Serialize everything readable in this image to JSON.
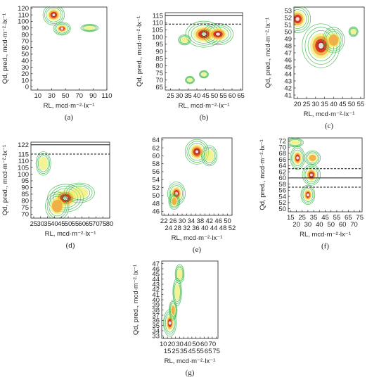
{
  "colors": {
    "outer": "#3bb84a",
    "mid": "#e9e93a",
    "warm": "#f2a03a",
    "hot": "#d42a1e",
    "core": "#7a1a14",
    "ref_line": "#111111"
  },
  "chart_data": [
    {
      "panel_label": "(a)",
      "type": "contour",
      "xlabel": "RL, mcd·m⁻²·lx⁻¹",
      "ylabel": "Qd, pred., mcd·m⁻²·lx⁻¹",
      "x_ticks": [
        "10",
        "30",
        "50",
        "70",
        "90",
        "110"
      ],
      "y_ticks": [
        "0",
        "10",
        "20",
        "30",
        "40",
        "50",
        "60",
        "70",
        "80",
        "90",
        "100",
        "110",
        "120"
      ],
      "xlim": [
        0,
        110
      ],
      "ylim": [
        -5,
        122
      ],
      "hline_solid": null,
      "hline_dashed": null,
      "clusters": [
        {
          "x": 33,
          "y": 110,
          "sx": 6,
          "sy": 6,
          "peak": 1.0
        },
        {
          "x": 45,
          "y": 89,
          "sx": 5,
          "sy": 4,
          "peak": 0.9
        },
        {
          "x": 85,
          "y": 90,
          "sx": 7,
          "sy": 3,
          "peak": 0.35
        }
      ]
    },
    {
      "panel_label": "(b)",
      "type": "contour",
      "xlabel": "RL, mcd·m⁻²·lx⁻¹",
      "ylabel": "Qd, pred., mcd·m⁻²·lx⁻¹",
      "x_ticks": [
        "25",
        "30",
        "35",
        "40",
        "45",
        "50",
        "55",
        "60",
        "65"
      ],
      "y_ticks": [
        "65",
        "70",
        "75",
        "80",
        "85",
        "90",
        "95",
        "100",
        "105",
        "110",
        "115"
      ],
      "xlim": [
        22,
        66
      ],
      "ylim": [
        63,
        117
      ],
      "hline_solid": 115,
      "hline_dashed": 109,
      "clusters": [
        {
          "x": 44,
          "y": 102,
          "sx": 4,
          "sy": 3.5,
          "peak": 1.0
        },
        {
          "x": 52,
          "y": 102,
          "sx": 3.5,
          "sy": 3,
          "peak": 0.9
        },
        {
          "x": 33,
          "y": 98,
          "sx": 2,
          "sy": 2,
          "peak": 0.3
        },
        {
          "x": 36,
          "y": 70,
          "sx": 1.5,
          "sy": 1.5,
          "peak": 0.25
        },
        {
          "x": 44,
          "y": 74,
          "sx": 1.5,
          "sy": 1.5,
          "peak": 0.25
        }
      ]
    },
    {
      "panel_label": "(c)",
      "type": "contour",
      "xlabel": "RL, mcd·m⁻²·lx⁻¹",
      "ylabel": "Qd, pred., mcd·m⁻²·lx⁻¹",
      "x_ticks": [
        "20",
        "25",
        "30",
        "35",
        "40",
        "45",
        "50",
        "55"
      ],
      "y_ticks": [
        "41",
        "42",
        "43",
        "44",
        "45",
        "46",
        "47",
        "48",
        "49",
        "50",
        "51",
        "52",
        "53"
      ],
      "xlim": [
        18,
        57
      ],
      "ylim": [
        40.5,
        53.5
      ],
      "hline_solid": null,
      "hline_dashed": null,
      "clusters": [
        {
          "x": 20,
          "y": 51.8,
          "sx": 3,
          "sy": 0.8,
          "peak": 0.85
        },
        {
          "x": 33,
          "y": 48,
          "sx": 4,
          "sy": 1.2,
          "peak": 1.0
        },
        {
          "x": 40,
          "y": 48.8,
          "sx": 3,
          "sy": 0.9,
          "peak": 0.5
        },
        {
          "x": 51,
          "y": 50,
          "sx": 1.5,
          "sy": 0.4,
          "peak": 0.25
        }
      ]
    },
    {
      "panel_label": "(d)",
      "type": "contour",
      "xlabel": "RL, mcd·m⁻²·lx⁻¹",
      "ylabel": "Qd, pred., mcd·m⁻²·lx⁻¹",
      "x_ticks": [
        "25",
        "30",
        "35",
        "40",
        "45",
        "50",
        "55",
        "60",
        "65",
        "70",
        "75",
        "80"
      ],
      "y_ticks": [
        "70",
        "75",
        "80",
        "85",
        "90",
        "95",
        "100",
        "105",
        "110",
        "115",
        "122"
      ],
      "xlim": [
        23,
        80
      ],
      "ylim": [
        67,
        124
      ],
      "hline_solid": 122,
      "hline_dashed": 115,
      "clusters": [
        {
          "x": 48,
          "y": 82,
          "sx": 5,
          "sy": 4,
          "peak": 1.0
        },
        {
          "x": 42,
          "y": 76,
          "sx": 4,
          "sy": 5,
          "peak": 0.6
        },
        {
          "x": 58,
          "y": 86,
          "sx": 6,
          "sy": 4,
          "peak": 0.35
        },
        {
          "x": 32,
          "y": 108,
          "sx": 3,
          "sy": 5,
          "peak": 0.3
        }
      ]
    },
    {
      "panel_label": "(e)",
      "type": "contour",
      "xlabel": "RL, mcd·m⁻²·lx⁻¹",
      "ylabel": "",
      "x_ticks_top": [
        "22",
        "26",
        "30",
        "34",
        "38",
        "42",
        "46",
        "50"
      ],
      "x_ticks_bottom": [
        "24",
        "28",
        "32",
        "36",
        "40",
        "44",
        "48",
        "52"
      ],
      "y_ticks": [
        "46",
        "48",
        "50",
        "52",
        "54",
        "56",
        "58",
        "60",
        "62",
        "64"
      ],
      "xlim": [
        21,
        52
      ],
      "ylim": [
        45,
        64.5
      ],
      "hline_solid": null,
      "hline_dashed": null,
      "clusters": [
        {
          "x": 36.5,
          "y": 61,
          "sx": 2,
          "sy": 1.2,
          "peak": 1.0
        },
        {
          "x": 27.5,
          "y": 50.5,
          "sx": 1.6,
          "sy": 1.2,
          "peak": 0.85
        },
        {
          "x": 26.5,
          "y": 48.5,
          "sx": 1.2,
          "sy": 1,
          "peak": 0.5
        },
        {
          "x": 42,
          "y": 60,
          "sx": 2,
          "sy": 1.5,
          "peak": 0.25
        }
      ]
    },
    {
      "panel_label": "(f)",
      "type": "contour",
      "xlabel": "RL, mcd·m⁻²·lx⁻¹",
      "ylabel": "Qd, pred., mcd·m⁻²·lx⁻¹",
      "x_ticks_top": [
        "15",
        "25",
        "35",
        "45",
        "55",
        "65",
        "75"
      ],
      "x_ticks_bottom": [
        "20",
        "30",
        "40",
        "50",
        "60",
        "70"
      ],
      "y_ticks": [
        "50",
        "52",
        "54",
        "56",
        "58",
        "60",
        "62",
        "64",
        "66",
        "68",
        "70",
        "72"
      ],
      "xlim": [
        13,
        77
      ],
      "ylim": [
        49,
        73
      ],
      "hline_solid": 60,
      "hline_dashed_list": [
        63,
        57
      ],
      "clusters": [
        {
          "x": 21,
          "y": 66.5,
          "sx": 2.5,
          "sy": 1.5,
          "peak": 0.9
        },
        {
          "x": 34,
          "y": 66.5,
          "sx": 3.5,
          "sy": 1.2,
          "peak": 0.45
        },
        {
          "x": 33,
          "y": 61,
          "sx": 3,
          "sy": 1.3,
          "peak": 1.0
        },
        {
          "x": 30,
          "y": 54.5,
          "sx": 2.5,
          "sy": 1.3,
          "peak": 0.85
        },
        {
          "x": 19,
          "y": 71.5,
          "sx": 4,
          "sy": 0.8,
          "peak": 0.3
        }
      ]
    },
    {
      "panel_label": "(g)",
      "type": "contour",
      "xlabel": "RL, mcd·m⁻²·lx⁻¹",
      "ylabel": "Qd, pred., mcd·m⁻²·lx⁻¹",
      "x_ticks_top": [
        "10",
        "20",
        "30",
        "40",
        "50",
        "60",
        "70"
      ],
      "x_ticks_bottom": [
        "15",
        "25",
        "35",
        "45",
        "55",
        "65",
        "75"
      ],
      "y_ticks": [
        "33",
        "34",
        "35",
        "36",
        "37",
        "38",
        "39",
        "40",
        "41",
        "42",
        "43",
        "44",
        "45",
        "46",
        "47"
      ],
      "xlim": [
        8,
        77
      ],
      "ylim": [
        32.5,
        47.5
      ],
      "hline_solid": null,
      "hline_dashed": null,
      "clusters": [
        {
          "x": 18,
          "y": 35.5,
          "sx": 3,
          "sy": 1.0,
          "peak": 1.0
        },
        {
          "x": 22,
          "y": 38,
          "sx": 2.5,
          "sy": 1.0,
          "peak": 0.45
        },
        {
          "x": 27,
          "y": 41.5,
          "sx": 3,
          "sy": 1.5,
          "peak": 0.3
        },
        {
          "x": 30,
          "y": 45,
          "sx": 3,
          "sy": 1.0,
          "peak": 0.35
        }
      ]
    }
  ]
}
